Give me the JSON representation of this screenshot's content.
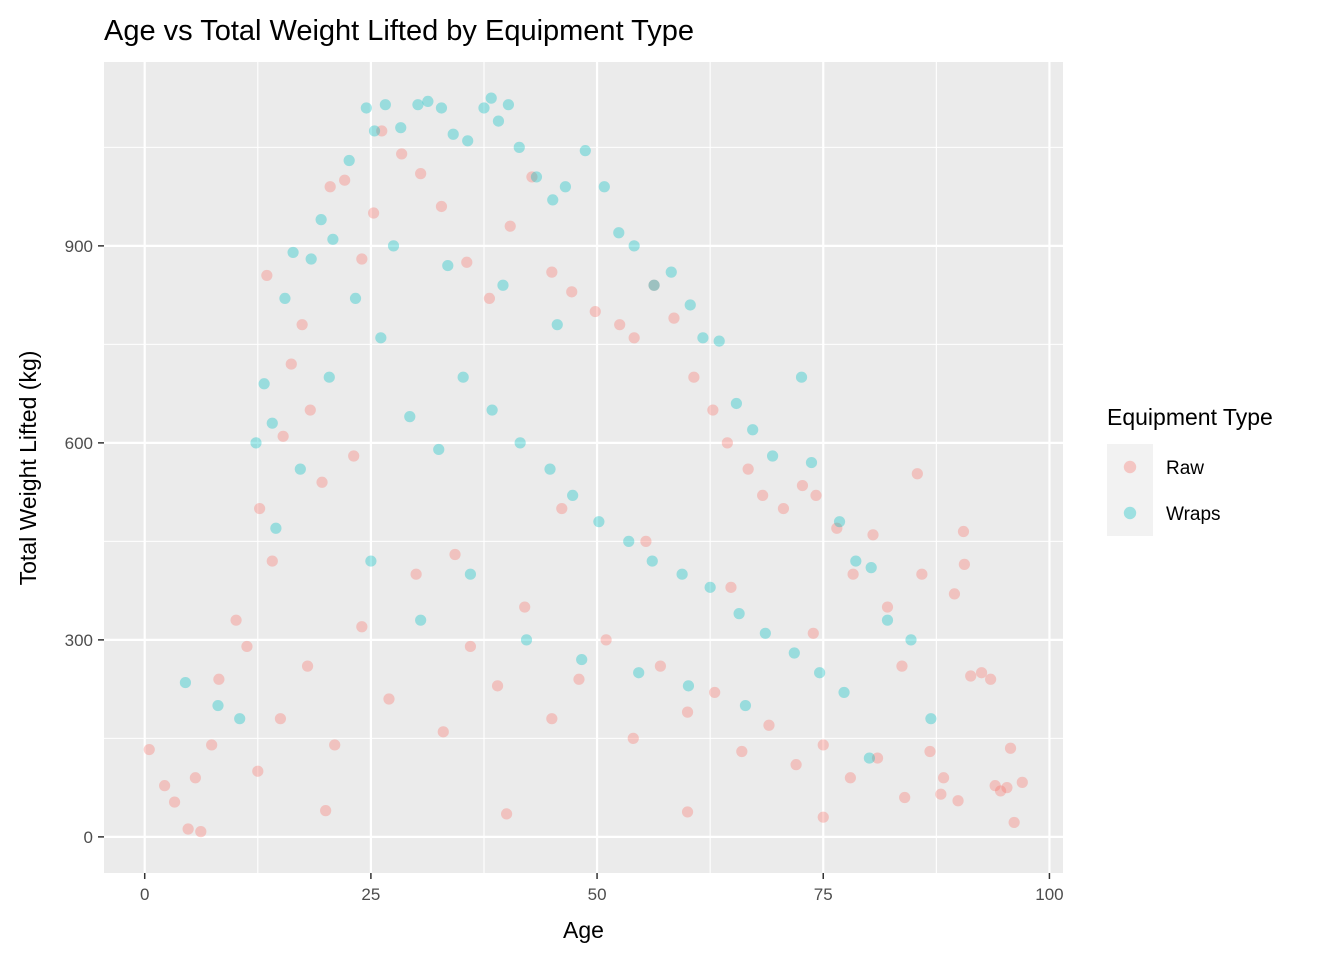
{
  "chart_data": {
    "type": "scatter",
    "title": "Age vs Total Weight Lifted by Equipment Type",
    "xlabel": "Age",
    "ylabel": "Total Weight Lifted (kg)",
    "xlim": [
      -4.5,
      101.5
    ],
    "ylim": [
      -55,
      1180
    ],
    "x_ticks": [
      0,
      25,
      50,
      75,
      100
    ],
    "y_ticks": [
      0,
      300,
      600,
      900
    ],
    "x_tick_labels": [
      "0",
      "25",
      "50",
      "75",
      "100"
    ],
    "y_tick_labels": [
      "0",
      "300",
      "600",
      "900"
    ],
    "grid": true,
    "legend": {
      "title": "Equipment Type",
      "position": "right",
      "entries": [
        "Raw",
        "Wraps"
      ]
    },
    "series": [
      {
        "name": "Raw",
        "color": "#F8766D",
        "opacity": 0.35,
        "points": [
          [
            0.5,
            133
          ],
          [
            2.2,
            78
          ],
          [
            3.3,
            53
          ],
          [
            4.8,
            12
          ],
          [
            6.2,
            8
          ],
          [
            5.6,
            90
          ],
          [
            7.4,
            140
          ],
          [
            8.2,
            240
          ],
          [
            10.1,
            330
          ],
          [
            11.3,
            290
          ],
          [
            12.7,
            500
          ],
          [
            13.5,
            855
          ],
          [
            14.1,
            420
          ],
          [
            15.3,
            610
          ],
          [
            16.2,
            720
          ],
          [
            17.4,
            780
          ],
          [
            18.3,
            650
          ],
          [
            19.6,
            540
          ],
          [
            20.5,
            990
          ],
          [
            22.1,
            1000
          ],
          [
            24.0,
            880
          ],
          [
            25.3,
            950
          ],
          [
            26.2,
            1075
          ],
          [
            28.4,
            1040
          ],
          [
            30.5,
            1010
          ],
          [
            32.8,
            960
          ],
          [
            35.6,
            875
          ],
          [
            38.1,
            820
          ],
          [
            40.4,
            930
          ],
          [
            42.8,
            1005
          ],
          [
            45.0,
            860
          ],
          [
            47.2,
            830
          ],
          [
            49.8,
            800
          ],
          [
            52.5,
            780
          ],
          [
            54.1,
            760
          ],
          [
            56.3,
            840
          ],
          [
            58.5,
            790
          ],
          [
            60.7,
            700
          ],
          [
            62.8,
            650
          ],
          [
            64.4,
            600
          ],
          [
            66.7,
            560
          ],
          [
            68.3,
            520
          ],
          [
            70.6,
            500
          ],
          [
            72.7,
            535
          ],
          [
            74.2,
            520
          ],
          [
            76.5,
            470
          ],
          [
            78.3,
            400
          ],
          [
            80.5,
            460
          ],
          [
            82.1,
            350
          ],
          [
            83.7,
            260
          ],
          [
            85.4,
            553
          ],
          [
            85.9,
            400
          ],
          [
            86.8,
            130
          ],
          [
            88.3,
            90
          ],
          [
            89.5,
            370
          ],
          [
            90.5,
            465
          ],
          [
            90.6,
            415
          ],
          [
            91.3,
            245
          ],
          [
            92.5,
            250
          ],
          [
            93.5,
            240
          ],
          [
            94.0,
            78
          ],
          [
            94.6,
            70
          ],
          [
            95.3,
            75
          ],
          [
            95.7,
            135
          ],
          [
            96.1,
            22
          ],
          [
            97.0,
            83
          ],
          [
            89.9,
            55
          ],
          [
            88.0,
            65
          ],
          [
            12.5,
            100
          ],
          [
            15.0,
            180
          ],
          [
            18.0,
            260
          ],
          [
            21.0,
            140
          ],
          [
            24.0,
            320
          ],
          [
            27.0,
            210
          ],
          [
            30.0,
            400
          ],
          [
            33.0,
            160
          ],
          [
            36.0,
            290
          ],
          [
            39.0,
            230
          ],
          [
            42.0,
            350
          ],
          [
            45.0,
            180
          ],
          [
            48.0,
            240
          ],
          [
            51.0,
            300
          ],
          [
            54.0,
            150
          ],
          [
            57.0,
            260
          ],
          [
            60.0,
            190
          ],
          [
            63.0,
            220
          ],
          [
            66.0,
            130
          ],
          [
            69.0,
            170
          ],
          [
            72.0,
            110
          ],
          [
            75.0,
            140
          ],
          [
            78.0,
            90
          ],
          [
            81.0,
            120
          ],
          [
            84.0,
            60
          ],
          [
            23.1,
            580
          ],
          [
            34.3,
            430
          ],
          [
            46.1,
            500
          ],
          [
            55.4,
            450
          ],
          [
            64.8,
            380
          ],
          [
            73.9,
            310
          ],
          [
            20.0,
            40
          ],
          [
            40.0,
            35
          ],
          [
            60.0,
            38
          ],
          [
            75.0,
            30
          ]
        ]
      },
      {
        "name": "Wraps",
        "color": "#00BFC4",
        "opacity": 0.35,
        "points": [
          [
            4.5,
            235
          ],
          [
            8.1,
            200
          ],
          [
            10.5,
            180
          ],
          [
            12.3,
            600
          ],
          [
            13.2,
            690
          ],
          [
            14.1,
            630
          ],
          [
            15.5,
            820
          ],
          [
            16.4,
            890
          ],
          [
            18.4,
            880
          ],
          [
            19.5,
            940
          ],
          [
            20.8,
            910
          ],
          [
            22.6,
            1030
          ],
          [
            24.5,
            1110
          ],
          [
            25.4,
            1075
          ],
          [
            26.6,
            1115
          ],
          [
            28.3,
            1080
          ],
          [
            30.2,
            1115
          ],
          [
            31.3,
            1120
          ],
          [
            32.8,
            1110
          ],
          [
            34.1,
            1070
          ],
          [
            35.7,
            1060
          ],
          [
            37.5,
            1110
          ],
          [
            38.3,
            1125
          ],
          [
            39.1,
            1090
          ],
          [
            40.2,
            1115
          ],
          [
            41.4,
            1050
          ],
          [
            43.3,
            1005
          ],
          [
            45.1,
            970
          ],
          [
            46.5,
            990
          ],
          [
            48.7,
            1045
          ],
          [
            50.8,
            990
          ],
          [
            52.4,
            920
          ],
          [
            54.1,
            900
          ],
          [
            56.3,
            840
          ],
          [
            58.2,
            860
          ],
          [
            60.3,
            810
          ],
          [
            61.7,
            760
          ],
          [
            63.5,
            755
          ],
          [
            65.4,
            660
          ],
          [
            67.2,
            620
          ],
          [
            69.4,
            580
          ],
          [
            72.6,
            700
          ],
          [
            73.7,
            570
          ],
          [
            76.8,
            480
          ],
          [
            78.6,
            420
          ],
          [
            80.3,
            410
          ],
          [
            82.1,
            330
          ],
          [
            84.7,
            300
          ],
          [
            86.9,
            180
          ],
          [
            80.1,
            120
          ],
          [
            14.5,
            470
          ],
          [
            17.2,
            560
          ],
          [
            20.4,
            700
          ],
          [
            23.3,
            820
          ],
          [
            26.1,
            760
          ],
          [
            29.3,
            640
          ],
          [
            32.5,
            590
          ],
          [
            35.2,
            700
          ],
          [
            38.4,
            650
          ],
          [
            41.5,
            600
          ],
          [
            44.8,
            560
          ],
          [
            47.3,
            520
          ],
          [
            50.2,
            480
          ],
          [
            53.5,
            450
          ],
          [
            56.1,
            420
          ],
          [
            59.4,
            400
          ],
          [
            62.5,
            380
          ],
          [
            65.7,
            340
          ],
          [
            68.6,
            310
          ],
          [
            71.8,
            280
          ],
          [
            74.6,
            250
          ],
          [
            77.3,
            220
          ],
          [
            25.0,
            420
          ],
          [
            30.5,
            330
          ],
          [
            36.0,
            400
          ],
          [
            42.2,
            300
          ],
          [
            48.3,
            270
          ],
          [
            54.6,
            250
          ],
          [
            60.1,
            230
          ],
          [
            66.4,
            200
          ],
          [
            27.5,
            900
          ],
          [
            33.5,
            870
          ],
          [
            39.6,
            840
          ],
          [
            45.6,
            780
          ]
        ]
      }
    ]
  }
}
